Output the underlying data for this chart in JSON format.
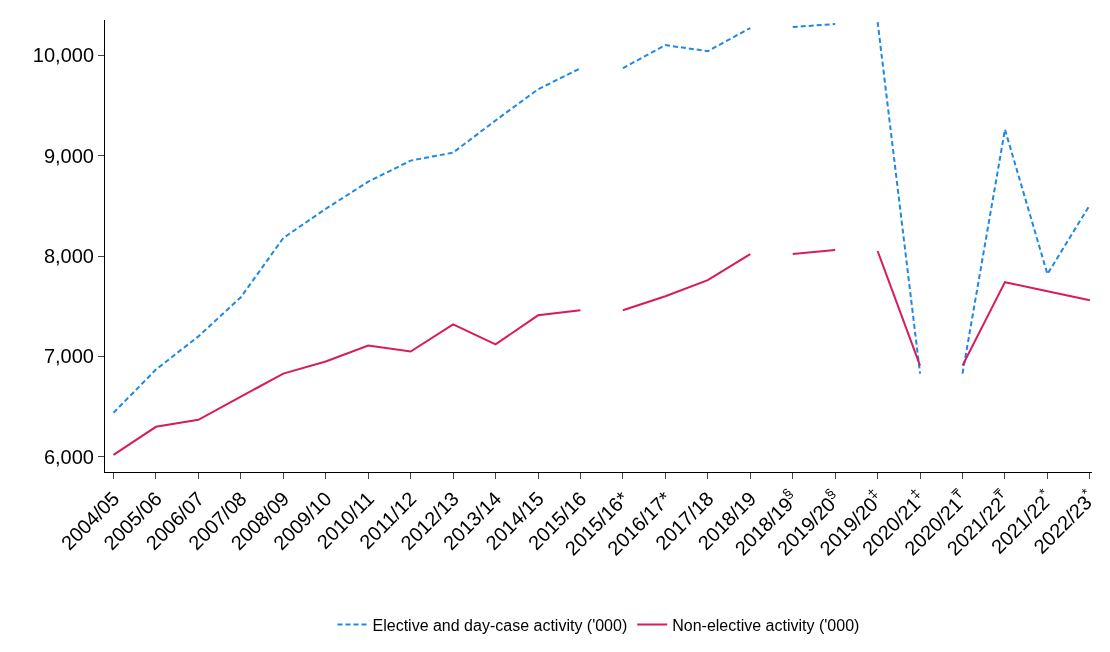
{
  "chart_data": {
    "type": "line",
    "categories": [
      "2004/05",
      "2005/06",
      "2006/07",
      "2007/08",
      "2008/09",
      "2009/10",
      "2010/11",
      "2011/12",
      "2012/13",
      "2013/14",
      "2014/15",
      "2015/16",
      "2015/16*",
      "2016/17*",
      "2017/18",
      "2018/19",
      "2018/19$^{§}$",
      "2019/20$^{§}$",
      "2019/20$^{‡}$",
      "2020/21$^{‡}$",
      "2020/21$^{₸}$",
      "2021/22$^{₸}$",
      "2021/22$^{*}$",
      "2022/23$^{*}$"
    ],
    "series": [
      {
        "name": "Elective and day-case activity ('000)",
        "color": "#1e88e5",
        "line_style": "dashed",
        "values": [
          6440,
          6870,
          7200,
          7590,
          8180,
          8470,
          8740,
          8950,
          9030,
          9350,
          9660,
          9870,
          null,
          null,
          null,
          null,
          null,
          null,
          null,
          null,
          null,
          null,
          null,
          null
        ]
      },
      {
        "color": "#1e88e5",
        "line_style": "dashed",
        "values": [
          null,
          null,
          null,
          null,
          null,
          null,
          null,
          null,
          null,
          null,
          null,
          null,
          9870,
          10100,
          10040,
          10270,
          null,
          null,
          null,
          null,
          null,
          null,
          null,
          null
        ]
      },
      {
        "color": "#1e88e5",
        "line_style": "dashed",
        "values": [
          null,
          null,
          null,
          null,
          null,
          null,
          null,
          null,
          null,
          null,
          null,
          null,
          null,
          null,
          null,
          null,
          10280,
          10310,
          null,
          null,
          null,
          null,
          null,
          null
        ]
      },
      {
        "color": "#1e88e5",
        "line_style": "dashed",
        "values": [
          null,
          null,
          null,
          null,
          null,
          null,
          null,
          null,
          null,
          null,
          null,
          null,
          null,
          null,
          null,
          null,
          null,
          null,
          10330,
          6830,
          null,
          null,
          null,
          null
        ]
      },
      {
        "color": "#1e88e5",
        "line_style": "dashed",
        "values": [
          null,
          null,
          null,
          null,
          null,
          null,
          null,
          null,
          null,
          null,
          null,
          null,
          null,
          null,
          null,
          null,
          null,
          null,
          null,
          null,
          6830,
          9260,
          7820,
          8510
        ]
      },
      {
        "name": "Non-elective activity ('000)",
        "color": "#d81b60",
        "line_style": "solid",
        "values": [
          6020,
          6300,
          6370,
          6600,
          6830,
          6950,
          7110,
          7050,
          7320,
          7120,
          7410,
          7460,
          null,
          null,
          null,
          null,
          null,
          null,
          null,
          null,
          null,
          null,
          null,
          null
        ]
      },
      {
        "color": "#d81b60",
        "line_style": "solid",
        "values": [
          null,
          null,
          null,
          null,
          null,
          null,
          null,
          null,
          null,
          null,
          null,
          null,
          7460,
          7600,
          7760,
          8020,
          null,
          null,
          null,
          null,
          null,
          null,
          null,
          null
        ]
      },
      {
        "color": "#d81b60",
        "line_style": "solid",
        "values": [
          null,
          null,
          null,
          null,
          null,
          null,
          null,
          null,
          null,
          null,
          null,
          null,
          null,
          null,
          null,
          null,
          8020,
          8060,
          null,
          null,
          null,
          null,
          null,
          null
        ]
      },
      {
        "color": "#d81b60",
        "line_style": "solid",
        "values": [
          null,
          null,
          null,
          null,
          null,
          null,
          null,
          null,
          null,
          null,
          null,
          null,
          null,
          null,
          null,
          null,
          null,
          null,
          8050,
          6910,
          null,
          null,
          null,
          null
        ]
      },
      {
        "color": "#d81b60",
        "line_style": "solid",
        "values": [
          null,
          null,
          null,
          null,
          null,
          null,
          null,
          null,
          null,
          null,
          null,
          null,
          null,
          null,
          null,
          null,
          null,
          null,
          null,
          null,
          6910,
          7740,
          7650,
          7560
        ]
      }
    ],
    "ylim": [
      5850,
      10350
    ],
    "yticks": [
      {
        "value": 6000,
        "label": "6,000"
      },
      {
        "value": 7000,
        "label": "7,000"
      },
      {
        "value": 8000,
        "label": "8,000"
      },
      {
        "value": 9000,
        "label": "9,000"
      },
      {
        "value": 10000,
        "label": "10,000"
      }
    ],
    "legend": "bottom",
    "marker": "none"
  }
}
